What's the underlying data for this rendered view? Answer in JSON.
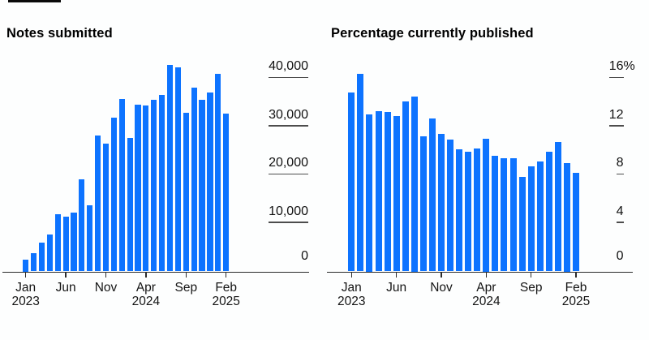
{
  "figure": {
    "background": "#fdfefe",
    "bar_color": "#0d73ff",
    "axis_color": "#2b2b2b",
    "tick_line_color": "#4d4d4d",
    "text_color": "#111111"
  },
  "chart_data": [
    {
      "type": "bar",
      "title": "Notes submitted",
      "categories": [
        "Jan 2023",
        "Feb 2023",
        "Mar 2023",
        "Apr 2023",
        "May 2023",
        "Jun 2023",
        "Jul 2023",
        "Aug 2023",
        "Sep 2023",
        "Oct 2023",
        "Nov 2023",
        "Dec 2023",
        "Jan 2024",
        "Feb 2024",
        "Mar 2024",
        "Apr 2024",
        "May 2024",
        "Jun 2024",
        "Jul 2024",
        "Aug 2024",
        "Sep 2024",
        "Oct 2024",
        "Nov 2024",
        "Dec 2024",
        "Jan 2025",
        "Feb 2025"
      ],
      "values": [
        2500,
        3700,
        5900,
        7700,
        11800,
        11300,
        12200,
        19100,
        13700,
        28100,
        26400,
        31800,
        35700,
        27700,
        34600,
        34300,
        35600,
        36600,
        42700,
        42300,
        32900,
        38000,
        35500,
        37000,
        40900,
        32700
      ],
      "xlabel": "",
      "ylabel": "",
      "ylim": [
        0,
        44000
      ],
      "grid": false,
      "legend": "none",
      "axis_side": "right",
      "y_tick_values": [
        0,
        10000,
        20000,
        30000,
        40000
      ],
      "y_tick_labels": [
        "0",
        "10,000",
        "20,000",
        "30,000",
        "40,000"
      ],
      "y_top_suffix": "",
      "x_ticks": [
        {
          "index": 0,
          "lines": [
            "Jan",
            "2023"
          ]
        },
        {
          "index": 5,
          "lines": [
            "Jun"
          ]
        },
        {
          "index": 10,
          "lines": [
            "Nov"
          ]
        },
        {
          "index": 15,
          "lines": [
            "Apr",
            "2024"
          ]
        },
        {
          "index": 20,
          "lines": [
            "Sep"
          ]
        },
        {
          "index": 25,
          "lines": [
            "Feb",
            "2025"
          ]
        }
      ]
    },
    {
      "type": "bar",
      "title": "Percentage currently published",
      "categories": [
        "Jan 2023",
        "Feb 2023",
        "Mar 2023",
        "Apr 2023",
        "May 2023",
        "Jun 2023",
        "Jul 2023",
        "Aug 2023",
        "Sep 2023",
        "Oct 2023",
        "Nov 2023",
        "Dec 2023",
        "Jan 2024",
        "Feb 2024",
        "Mar 2024",
        "Apr 2024",
        "May 2024",
        "Jun 2024",
        "Jul 2024",
        "Aug 2024",
        "Sep 2024",
        "Oct 2024",
        "Nov 2024",
        "Dec 2024",
        "Jan 2025",
        "Feb 2025"
      ],
      "values": [
        14.8,
        16.4,
        13.0,
        13.3,
        13.2,
        12.9,
        14.1,
        14.5,
        11.2,
        12.7,
        11.4,
        10.9,
        10.1,
        9.9,
        10.2,
        11.0,
        9.6,
        9.4,
        9.4,
        7.8,
        8.7,
        9.1,
        9.9,
        10.7,
        9.0,
        8.2
      ],
      "xlabel": "",
      "ylabel": "",
      "ylim": [
        0,
        17.6
      ],
      "grid": false,
      "legend": "none",
      "axis_side": "right",
      "y_tick_values": [
        0,
        4,
        8,
        12,
        16
      ],
      "y_tick_labels": [
        "0",
        "4",
        "8",
        "12",
        "16"
      ],
      "y_top_suffix": "%",
      "x_ticks": [
        {
          "index": 0,
          "lines": [
            "Jan",
            "2023"
          ]
        },
        {
          "index": 5,
          "lines": [
            "Jun"
          ]
        },
        {
          "index": 10,
          "lines": [
            "Nov"
          ]
        },
        {
          "index": 15,
          "lines": [
            "Apr",
            "2024"
          ]
        },
        {
          "index": 20,
          "lines": [
            "Sep"
          ]
        },
        {
          "index": 25,
          "lines": [
            "Feb",
            "2025"
          ]
        }
      ]
    }
  ]
}
